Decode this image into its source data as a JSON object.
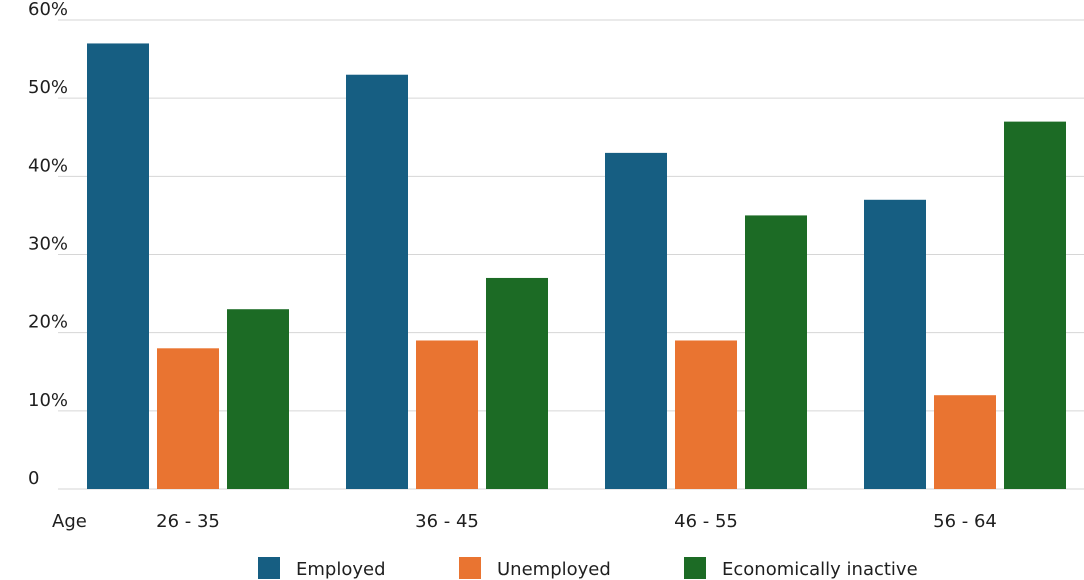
{
  "colors": {
    "employed": "#165e82",
    "unemployed": "#e97431",
    "inactive": "#1c6b25",
    "grid": "#d6d6d6",
    "text": "#1f1f1f"
  },
  "chart_data": {
    "type": "bar",
    "title": "",
    "xlabel": "Age",
    "ylabel": "",
    "categories": [
      "26 - 35",
      "36 - 45",
      "46 - 55",
      "56 - 64"
    ],
    "series": [
      {
        "name": "Employed",
        "color_key": "employed",
        "values": [
          57,
          53,
          43,
          37
        ]
      },
      {
        "name": "Unemployed",
        "color_key": "unemployed",
        "values": [
          18,
          19,
          19,
          12
        ]
      },
      {
        "name": "Economically inactive",
        "color_key": "inactive",
        "values": [
          23,
          27,
          35,
          47
        ]
      }
    ],
    "ylim": [
      0,
      60
    ],
    "yticks": [
      {
        "value": 0,
        "label": "0"
      },
      {
        "value": 10,
        "label": "10%"
      },
      {
        "value": 20,
        "label": "20%"
      },
      {
        "value": 30,
        "label": "30%"
      },
      {
        "value": 40,
        "label": "40%"
      },
      {
        "value": 50,
        "label": "50%"
      },
      {
        "value": 60,
        "label": "60%"
      }
    ],
    "grid": true,
    "legend_position": "bottom"
  }
}
